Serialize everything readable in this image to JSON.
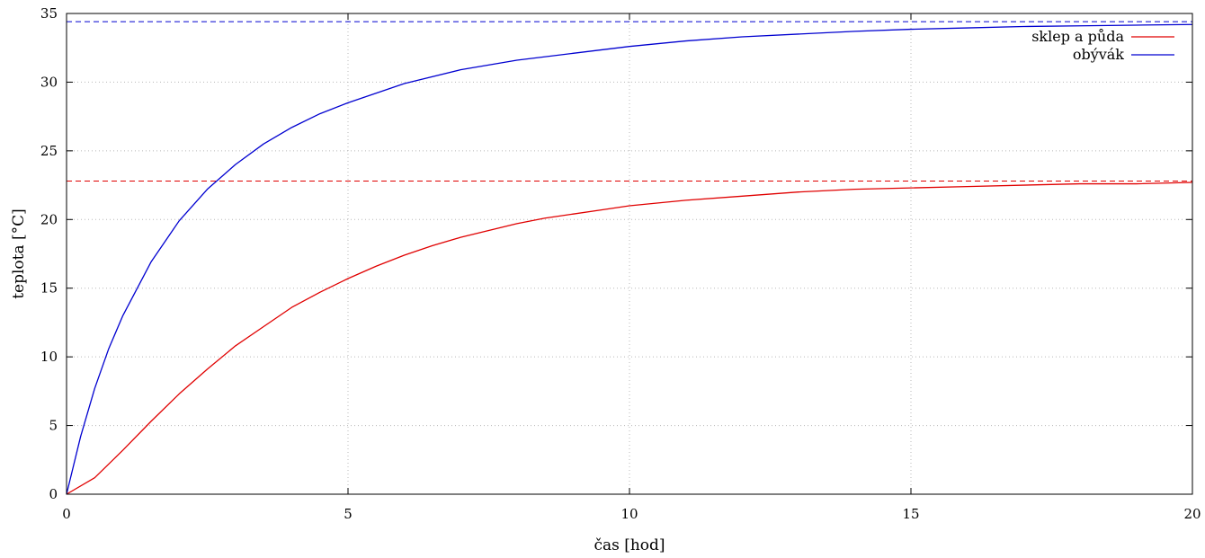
{
  "chart_data": {
    "type": "line",
    "title": "",
    "xlabel": "čas [hod]",
    "ylabel": "teplota [°C]",
    "xlim": [
      0,
      20
    ],
    "ylim": [
      0,
      35
    ],
    "x_ticks": [
      "0",
      "5",
      "10",
      "15",
      "20"
    ],
    "y_ticks": [
      "0",
      "5",
      "10",
      "15",
      "20",
      "25",
      "30",
      "35"
    ],
    "grid": true,
    "legend_position": "top-right",
    "series": [
      {
        "name": "sklep a půda",
        "color": "#e00000",
        "x": [
          0,
          0.5,
          1,
          1.5,
          2,
          2.5,
          3,
          3.5,
          4,
          4.5,
          5,
          5.5,
          6,
          6.5,
          7,
          7.5,
          8,
          8.5,
          9,
          9.5,
          10,
          11,
          12,
          13,
          14,
          15,
          16,
          17,
          18,
          19,
          20
        ],
        "y": [
          0,
          1.2,
          3.2,
          5.3,
          7.3,
          9.1,
          10.8,
          12.2,
          13.6,
          14.7,
          15.7,
          16.6,
          17.4,
          18.1,
          18.7,
          19.2,
          19.7,
          20.1,
          20.4,
          20.7,
          21.0,
          21.4,
          21.7,
          22.0,
          22.2,
          22.3,
          22.4,
          22.5,
          22.6,
          22.6,
          22.7
        ]
      },
      {
        "name": "obývák",
        "color": "#0000d0",
        "x": [
          0,
          0.25,
          0.5,
          0.75,
          1,
          1.5,
          2,
          2.5,
          3,
          3.5,
          4,
          4.5,
          5,
          6,
          7,
          8,
          9,
          10,
          11,
          12,
          13,
          14,
          15,
          16,
          17,
          18,
          19,
          20
        ],
        "y": [
          0,
          4.2,
          7.7,
          10.6,
          13.0,
          16.9,
          19.9,
          22.2,
          24.0,
          25.5,
          26.7,
          27.7,
          28.5,
          29.9,
          30.9,
          31.6,
          32.1,
          32.6,
          33.0,
          33.3,
          33.5,
          33.7,
          33.85,
          33.95,
          34.05,
          34.1,
          34.15,
          34.2
        ]
      }
    ],
    "asymptotes": [
      {
        "y": 34.4,
        "color": "#0000d0"
      },
      {
        "y": 22.8,
        "color": "#e00000"
      }
    ]
  }
}
